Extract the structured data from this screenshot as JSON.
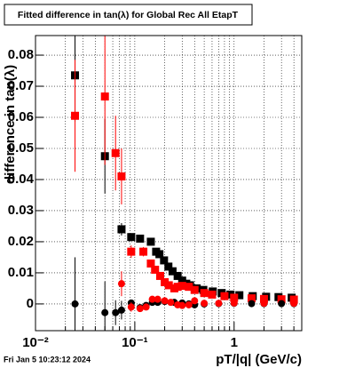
{
  "chart_data": {
    "type": "scatter",
    "title": "Fitted difference in tan(λ) for Global Rec All EtapT",
    "x_label": "pT/|q| (GeV/c)",
    "y_label": "difference in tan(λ)",
    "footer": "Fri Jan  5 10:23:12 2024",
    "xlog": true,
    "grid": true,
    "xlim": [
      0.01,
      4.8
    ],
    "xticks": [
      {
        "value": 0.01,
        "label": "10⁻²"
      },
      {
        "value": 0.1,
        "label": "10⁻¹"
      },
      1
    ],
    "xminorticks": [
      0.02,
      0.03,
      0.04,
      0.05,
      0.06,
      0.07,
      0.08,
      0.09,
      0.2,
      0.3,
      0.4,
      0.5,
      0.6,
      0.7,
      0.8,
      0.9,
      2,
      3,
      4
    ],
    "ylim": [
      -0.0086,
      0.0863
    ],
    "yticks": [
      0,
      0.01,
      0.02,
      0.03,
      0.04,
      0.05,
      0.06,
      0.07,
      0.08
    ],
    "series": [
      {
        "marker": "square",
        "color": "#000000",
        "x": [
          0.025,
          0.05,
          0.0735,
          0.092,
          0.113,
          0.145,
          0.164,
          0.177,
          0.197,
          0.218,
          0.24,
          0.27,
          0.3,
          0.33,
          0.36,
          0.42,
          0.49,
          0.61,
          0.75,
          0.92,
          1.13,
          1.54,
          2.1,
          2.8,
          3.8
        ],
        "values": [
          0.0735,
          0.0475,
          0.024,
          0.0215,
          0.021,
          0.02,
          0.0168,
          0.016,
          0.014,
          0.012,
          0.0105,
          0.009,
          0.0075,
          0.0065,
          0.006,
          0.005,
          0.0045,
          0.004,
          0.0035,
          0.003,
          0.0028,
          0.0025,
          0.0023,
          0.0022,
          0.002
        ],
        "errors": [
          0.015,
          0.012,
          0.002,
          0.001,
          0.001,
          0.001,
          0.0008,
          0.0008,
          0.0007,
          0.0007,
          0.0006,
          0.0006,
          0.0005,
          0.0005,
          0.0005,
          0.0005,
          0.0005,
          0.0005,
          0.0005,
          0.0005,
          0.0005,
          0.0005,
          0.0005,
          0.0005,
          0.0005
        ]
      },
      {
        "marker": "square",
        "color": "#ff0000",
        "x": [
          0.025,
          0.05,
          0.064,
          0.0735,
          0.092,
          0.122,
          0.145,
          0.16,
          0.18,
          0.2,
          0.22,
          0.25,
          0.27,
          0.3,
          0.35,
          0.4,
          0.5,
          0.6,
          0.8,
          1.0,
          1.5,
          2,
          3,
          4
        ],
        "values": [
          0.0605,
          0.0667,
          0.0485,
          0.041,
          0.0168,
          0.0168,
          0.013,
          0.011,
          0.009,
          0.007,
          0.006,
          0.005,
          0.0055,
          0.0058,
          0.0055,
          0.0045,
          0.0035,
          0.003,
          0.0025,
          0.002,
          0.0018,
          0.0016,
          0.0015,
          0.0014
        ],
        "errors": [
          0.018,
          0.022,
          0.012,
          0.009,
          0.002,
          0.0015,
          0.001,
          0.001,
          0.0008,
          0.0008,
          0.0007,
          0.0007,
          0.0006,
          0.0006,
          0.0005,
          0.0005,
          0.0005,
          0.0005,
          0.0005,
          0.0005,
          0.0005,
          0.0005,
          0.0005,
          0.0005
        ]
      },
      {
        "marker": "circle",
        "color": "#000000",
        "x": [
          0.025,
          0.05,
          0.064,
          0.0735,
          0.092,
          0.113,
          0.13,
          0.15,
          0.17,
          0.2,
          0.25,
          0.3,
          0.35,
          0.4,
          0.5,
          0.7,
          1,
          1.5,
          2,
          3,
          4
        ],
        "values": [
          0,
          -0.0028,
          -0.0028,
          -0.002,
          0.0003,
          -0.0012,
          -0.0005,
          0.0005,
          0.0005,
          0.0008,
          0.0005,
          0.0003,
          0,
          -0.0003,
          0,
          0.0001,
          0.0002,
          0.0001,
          0.0001,
          0.0001,
          0.0001
        ],
        "errors": [
          0.015,
          0.01,
          0.004,
          0.003,
          0.001,
          0.001,
          0.0008,
          0.0007,
          0.0006,
          0.0005,
          0.0005,
          0.0005,
          0.0004,
          0.0004,
          0.0004,
          0.0004,
          0.0004,
          0.0004,
          0.0004,
          0.0004,
          0.0004
        ]
      },
      {
        "marker": "circle",
        "color": "#ff0000",
        "x": [
          0.0735,
          0.092,
          0.113,
          0.13,
          0.15,
          0.17,
          0.2,
          0.23,
          0.27,
          0.3,
          0.35,
          0.4,
          0.5,
          0.7,
          1,
          2,
          4
        ],
        "values": [
          0.0065,
          -0.001,
          -0.0015,
          -0.001,
          0.0015,
          0.0015,
          0.001,
          0.0005,
          -0.0003,
          -0.0005,
          -0.0003,
          0.001,
          0.0002,
          0.0002,
          0.0003,
          0.0002,
          0.0002
        ],
        "errors": [
          0.004,
          0.0015,
          0.001,
          0.0008,
          0.0007,
          0.0006,
          0.0005,
          0.0005,
          0.0005,
          0.0005,
          0.0004,
          0.0004,
          0.0004,
          0.0004,
          0.0004,
          0.0004,
          0.0004
        ]
      }
    ]
  }
}
